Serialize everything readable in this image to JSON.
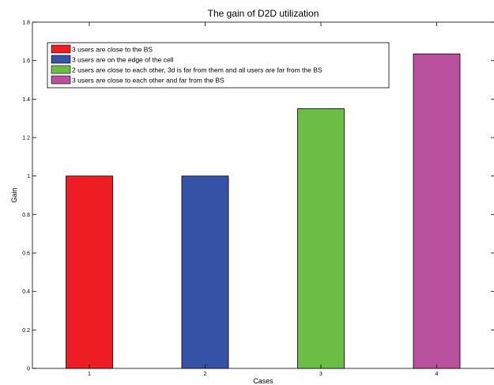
{
  "chart_data": {
    "type": "bar",
    "title": "The gain of D2D utilization",
    "xlabel": "Cases",
    "ylabel": "Gain",
    "categories": [
      "1",
      "2",
      "3",
      "4"
    ],
    "values": [
      1.0,
      1.0,
      1.35,
      1.635
    ],
    "ylim": [
      0,
      1.8
    ],
    "yticks": [
      "0",
      "0.2",
      "0.4",
      "0.6",
      "0.8",
      "1",
      "1.2",
      "1.4",
      "1.6",
      "1.8"
    ],
    "grid": false,
    "legend_position": "top-left",
    "legend": [
      {
        "label": "3 users are close to the BS",
        "color": "#ee1d23"
      },
      {
        "label": "3 users are on the edge of the cell",
        "color": "#3652a6"
      },
      {
        "label": "2 users are close to each other, 3d is far from them and all users are far from the BS",
        "color": "#6bbd45"
      },
      {
        "label": "3 users are close to each other and far from the BS",
        "color": "#b9519f"
      }
    ],
    "bar_colors": [
      "#ee1d23",
      "#3652a6",
      "#6bbd45",
      "#b9519f"
    ]
  }
}
